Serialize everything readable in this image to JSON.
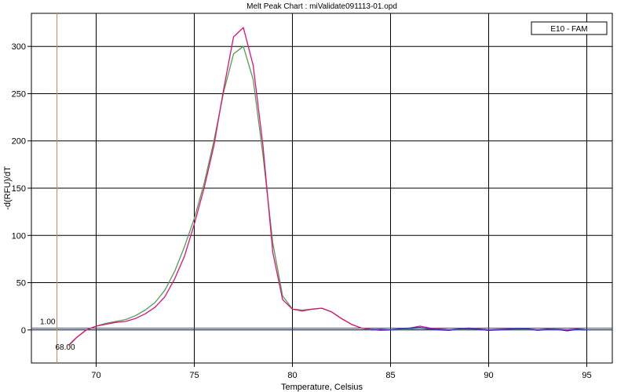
{
  "chart_data": {
    "type": "line",
    "title": "Melt Peak Chart : miValidate091113-01.opd",
    "xlabel": "Temperature, Celsius",
    "ylabel": "-d(RFU)/dT",
    "xlim": [
      66.7,
      96.3
    ],
    "ylim": [
      -35,
      335
    ],
    "x_ticks": [
      70,
      75,
      80,
      85,
      90,
      95
    ],
    "y_ticks": [
      0,
      50,
      100,
      150,
      200,
      250,
      300
    ],
    "grid": true,
    "legend": {
      "position": "top-right",
      "entries": [
        "E10 - FAM"
      ]
    },
    "threshold": {
      "value": 1.0,
      "label": "1.00",
      "color": "#334466"
    },
    "begin_temp": {
      "x": 68.0,
      "label": "68.00",
      "color": "#d08a50"
    },
    "series": [
      {
        "color": "#50a050",
        "x": [
          68.6,
          69.0,
          69.5,
          70.0,
          70.5,
          71.0,
          71.5,
          72.0,
          72.5,
          73.0,
          73.5,
          74.0,
          74.5,
          75.0,
          75.5,
          76.0,
          76.5,
          77.0,
          77.5,
          78.0,
          78.5,
          79.0,
          79.5,
          80.0,
          80.5,
          81.0,
          81.5,
          82.0,
          82.5,
          83.0,
          83.5,
          84.0,
          84.5,
          85.0,
          85.5,
          86.0,
          86.5,
          87.0,
          87.5,
          88.0,
          88.5,
          89.0,
          89.5,
          90.0,
          90.5,
          91.0,
          91.5,
          92.0,
          92.5,
          93.0,
          93.5,
          94.0,
          94.5,
          95.0
        ],
        "y": [
          -17,
          -8,
          0,
          4,
          7,
          9,
          11,
          15,
          21,
          29,
          42,
          62,
          88,
          118,
          155,
          200,
          252,
          292,
          300,
          265,
          185,
          92,
          36,
          22,
          21,
          22,
          23,
          19,
          12,
          6,
          2,
          0.5,
          0,
          0,
          0.5,
          1,
          2,
          1,
          0.5,
          0,
          0.5,
          1,
          0.5,
          0,
          0,
          0.5,
          1,
          0.5,
          0,
          0.5,
          0.5,
          0,
          0.5,
          0
        ]
      },
      {
        "color": "#e0107a",
        "x": [
          68.6,
          69.0,
          69.5,
          70.0,
          70.5,
          71.0,
          71.5,
          72.0,
          72.5,
          73.0,
          73.5,
          74.0,
          74.5,
          75.0,
          75.5,
          76.0,
          76.5,
          77.0,
          77.5,
          78.0,
          78.5,
          79.0,
          79.5,
          80.0,
          80.5,
          81.0,
          81.5,
          82.0,
          82.5,
          83.0,
          83.5,
          84.0,
          84.5,
          85.0,
          85.5,
          86.0,
          86.5,
          87.0,
          87.5,
          88.0,
          88.5,
          89.0,
          89.5,
          90.0,
          90.5,
          91.0,
          91.5,
          92.0,
          92.5,
          93.0,
          93.5,
          94.0,
          94.5,
          95.0
        ],
        "y": [
          -16,
          -8,
          0,
          4,
          6,
          8,
          9,
          12,
          17,
          24,
          35,
          54,
          78,
          112,
          150,
          195,
          255,
          310,
          320,
          280,
          195,
          82,
          32,
          22,
          20,
          22,
          23,
          19,
          12,
          6,
          2,
          0.5,
          -0.5,
          0,
          1,
          2,
          4,
          2,
          1,
          0,
          1,
          2,
          1,
          0,
          0.5,
          1,
          1.5,
          1,
          0,
          1,
          0.5,
          0,
          1,
          0
        ]
      },
      {
        "color": "#2030d0",
        "x": [
          84.0,
          84.5,
          85.0,
          85.5,
          86.0,
          86.5,
          87.0,
          87.5,
          88.0,
          88.5,
          89.0,
          89.5,
          90.0,
          90.5,
          91.0,
          91.5,
          92.0,
          92.5,
          93.0,
          93.5,
          94.0,
          94.5,
          95.0
        ],
        "y": [
          0,
          0.5,
          0,
          1,
          2,
          2.5,
          1,
          0,
          -0.5,
          1,
          1.5,
          0.5,
          -0.5,
          0,
          0.5,
          1.5,
          1,
          -0.5,
          0.5,
          0.5,
          -1,
          0.5,
          0
        ]
      }
    ]
  }
}
